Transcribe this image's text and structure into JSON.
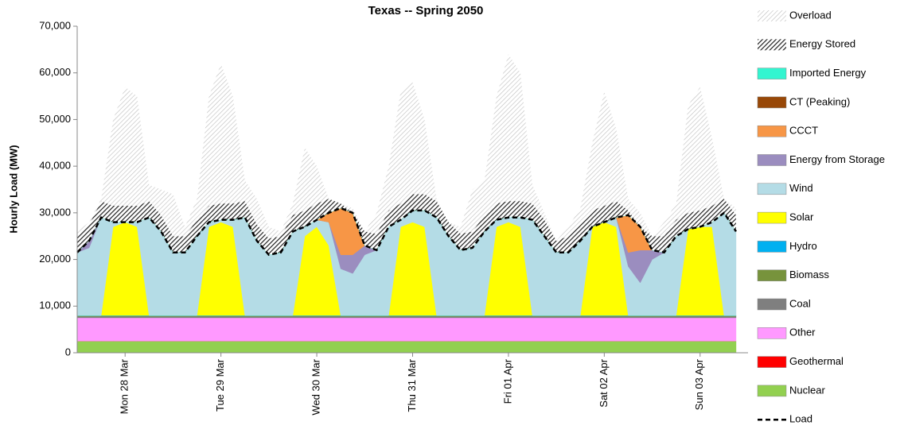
{
  "chart_data": {
    "type": "area",
    "title": "Texas -- Spring 2050",
    "y_label": "Hourly Load (MW)",
    "categories": [
      null,
      null,
      null,
      null,
      "Mon 28 Mar",
      null,
      null,
      null,
      null,
      null,
      null,
      null,
      "Tue 29 Mar",
      null,
      null,
      null,
      null,
      null,
      null,
      null,
      "Wed 30 Mar",
      null,
      null,
      null,
      null,
      null,
      null,
      null,
      "Thu 31 Mar",
      null,
      null,
      null,
      null,
      null,
      null,
      null,
      "Fri 01 Apr",
      null,
      null,
      null,
      null,
      null,
      null,
      null,
      "Sat 02 Apr",
      null,
      null,
      null,
      null,
      null,
      null,
      null,
      "Sun 03 Apr",
      null,
      null,
      null
    ],
    "ylim": [
      0,
      70000
    ],
    "yticks": [
      0,
      {
        "value": 10000,
        "label": "10,000"
      },
      {
        "value": 20000,
        "label": "20,000"
      },
      {
        "value": 30000,
        "label": "30,000"
      },
      {
        "value": 40000,
        "label": "40,000"
      },
      {
        "value": 50000,
        "label": "50,000"
      },
      {
        "value": 60000,
        "label": "60,000"
      },
      {
        "value": 70000,
        "label": "70,000"
      }
    ],
    "grid": false,
    "legend": "right",
    "series": [
      {
        "name": "Overload",
        "color": "#bdbdbd",
        "hatch": true,
        "values": [
          1000,
          500,
          500,
          18500,
          25500,
          23500,
          3500,
          5500,
          9000,
          2000,
          4500,
          23500,
          30000,
          23000,
          4500,
          5500,
          2500,
          1000,
          2500,
          13500,
          8000,
          0,
          0,
          1000,
          0,
          4500,
          9500,
          24000,
          24000,
          16000,
          500,
          0,
          1500,
          9000,
          7500,
          23000,
          31500,
          27500,
          4000,
          1500,
          0,
          2000,
          3500,
          14500,
          24500,
          15500,
          2500,
          3000,
          0,
          3000,
          3500,
          23000,
          26500,
          14500,
          0,
          1500
        ]
      },
      {
        "name": "Energy Stored",
        "color": "#202020",
        "hatch": true,
        "values": [
          3500,
          3500,
          3500,
          3500,
          3500,
          3500,
          3500,
          3500,
          3500,
          3500,
          3500,
          3500,
          3500,
          3500,
          3500,
          3500,
          3500,
          3500,
          3500,
          3500,
          3500,
          3000,
          1000,
          0,
          3000,
          3500,
          3500,
          3500,
          3500,
          3500,
          3500,
          3000,
          3500,
          3500,
          3500,
          3500,
          3500,
          3500,
          3500,
          3500,
          2500,
          3500,
          3500,
          3500,
          3500,
          3500,
          1000,
          0,
          3000,
          3500,
          3500,
          3500,
          3500,
          3500,
          3000,
          3500
        ]
      },
      {
        "name": "Imported Energy",
        "color": "#33f5d0",
        "values": [
          0,
          0,
          0,
          0,
          0,
          0,
          0,
          0,
          0,
          0,
          0,
          0,
          0,
          0,
          0,
          0,
          0,
          0,
          0,
          0,
          0,
          0,
          0,
          0,
          0,
          0,
          0,
          0,
          0,
          0,
          0,
          0,
          0,
          0,
          0,
          0,
          0,
          0,
          0,
          0,
          0,
          0,
          0,
          0,
          0,
          0,
          0,
          0,
          0,
          0,
          0,
          0,
          0,
          0,
          0,
          0
        ]
      },
      {
        "name": "CT (Peaking)",
        "color": "#984807",
        "values": [
          0,
          0,
          0,
          0,
          0,
          0,
          0,
          0,
          0,
          0,
          0,
          0,
          0,
          0,
          0,
          0,
          0,
          0,
          0,
          0,
          0,
          0,
          0,
          0,
          0,
          0,
          0,
          0,
          0,
          0,
          0,
          0,
          0,
          0,
          0,
          0,
          0,
          0,
          0,
          0,
          0,
          0,
          0,
          0,
          0,
          0,
          0,
          0,
          0,
          0,
          0,
          0,
          0,
          0,
          0,
          0
        ]
      },
      {
        "name": "CCCT",
        "color": "#f79646",
        "values": [
          0,
          0,
          0,
          0,
          0,
          0,
          0,
          0,
          0,
          0,
          0,
          0,
          0,
          0,
          0,
          0,
          0,
          0,
          0,
          0,
          0,
          2000,
          10000,
          9000,
          0,
          0,
          0,
          0,
          0,
          0,
          0,
          0,
          0,
          0,
          0,
          0,
          0,
          0,
          0,
          0,
          0,
          0,
          0,
          0,
          0,
          0,
          8000,
          5000,
          0,
          0,
          0,
          0,
          0,
          0,
          0,
          0
        ]
      },
      {
        "name": "Energy from Storage",
        "color": "#9b8dbf",
        "values": [
          0,
          1500,
          0,
          0,
          0,
          0,
          0,
          0,
          0,
          0,
          0,
          0,
          0,
          0,
          0,
          0,
          0,
          0,
          0,
          0,
          0,
          0,
          3000,
          4000,
          2000,
          0,
          0,
          0,
          0,
          0,
          0,
          0,
          0,
          0,
          0,
          0,
          0,
          0,
          0,
          0,
          0,
          0,
          0,
          0,
          0,
          0,
          3000,
          7000,
          2000,
          0,
          0,
          0,
          0,
          0,
          0,
          0
        ]
      },
      {
        "name": "Wind",
        "color": "#b4dce6",
        "values": [
          13500,
          14500,
          21000,
          1000,
          0,
          1000,
          21000,
          18000,
          13500,
          13500,
          17000,
          1000,
          500,
          1500,
          21000,
          16000,
          13000,
          13500,
          18000,
          2000,
          1500,
          5000,
          10000,
          9000,
          13000,
          14000,
          19000,
          1500,
          2500,
          3500,
          21000,
          17000,
          14000,
          14500,
          18000,
          1500,
          1000,
          2000,
          20500,
          17000,
          13500,
          13500,
          16000,
          0,
          0,
          2000,
          10500,
          7000,
          12000,
          13500,
          17000,
          0,
          0,
          1000,
          22000,
          18000
        ]
      },
      {
        "name": "Solar",
        "color": "#ffff00",
        "values": [
          0,
          0,
          0,
          19000,
          20000,
          19000,
          0,
          0,
          0,
          0,
          0,
          19000,
          20000,
          19000,
          0,
          0,
          0,
          0,
          0,
          17000,
          19000,
          15000,
          0,
          0,
          0,
          0,
          0,
          19000,
          20000,
          19000,
          0,
          0,
          0,
          0,
          0,
          19000,
          20000,
          19000,
          0,
          0,
          0,
          0,
          0,
          19000,
          20000,
          19000,
          0,
          0,
          0,
          0,
          0,
          18500,
          19000,
          19000,
          0,
          0
        ]
      },
      {
        "name": "Hydro",
        "color": "#00b0f0",
        "values": [
          100,
          100,
          100,
          100,
          100,
          100,
          100,
          100,
          100,
          100,
          100,
          100,
          100,
          100,
          100,
          100,
          100,
          100,
          100,
          100,
          100,
          100,
          100,
          100,
          100,
          100,
          100,
          100,
          100,
          100,
          100,
          100,
          100,
          100,
          100,
          100,
          100,
          100,
          100,
          100,
          100,
          100,
          100,
          100,
          100,
          100,
          100,
          100,
          100,
          100,
          100,
          100,
          100,
          100,
          100,
          100
        ]
      },
      {
        "name": "Biomass",
        "color": "#77933c",
        "values": [
          100,
          100,
          100,
          100,
          100,
          100,
          100,
          100,
          100,
          100,
          100,
          100,
          100,
          100,
          100,
          100,
          100,
          100,
          100,
          100,
          100,
          100,
          100,
          100,
          100,
          100,
          100,
          100,
          100,
          100,
          100,
          100,
          100,
          100,
          100,
          100,
          100,
          100,
          100,
          100,
          100,
          100,
          100,
          100,
          100,
          100,
          100,
          100,
          100,
          100,
          100,
          100,
          100,
          100,
          100,
          100
        ]
      },
      {
        "name": "Coal",
        "color": "#7f7f7f",
        "values": [
          300,
          300,
          300,
          300,
          300,
          300,
          300,
          300,
          300,
          300,
          300,
          300,
          300,
          300,
          300,
          300,
          300,
          300,
          300,
          300,
          300,
          300,
          300,
          300,
          300,
          300,
          300,
          300,
          300,
          300,
          300,
          300,
          300,
          300,
          300,
          300,
          300,
          300,
          300,
          300,
          300,
          300,
          300,
          300,
          300,
          300,
          300,
          300,
          300,
          300,
          300,
          300,
          300,
          300,
          300,
          300
        ]
      },
      {
        "name": "Other",
        "color": "#ff99ff",
        "values": [
          5000,
          5000,
          5000,
          5000,
          5000,
          5000,
          5000,
          5000,
          5000,
          5000,
          5000,
          5000,
          5000,
          5000,
          5000,
          5000,
          5000,
          5000,
          5000,
          5000,
          5000,
          5000,
          5000,
          5000,
          5000,
          5000,
          5000,
          5000,
          5000,
          5000,
          5000,
          5000,
          5000,
          5000,
          5000,
          5000,
          5000,
          5000,
          5000,
          5000,
          5000,
          5000,
          5000,
          5000,
          5000,
          5000,
          5000,
          5000,
          5000,
          5000,
          5000,
          5000,
          5000,
          5000,
          5000,
          5000
        ]
      },
      {
        "name": "Geothermal",
        "color": "#ff0000",
        "values": [
          0,
          0,
          0,
          0,
          0,
          0,
          0,
          0,
          0,
          0,
          0,
          0,
          0,
          0,
          0,
          0,
          0,
          0,
          0,
          0,
          0,
          0,
          0,
          0,
          0,
          0,
          0,
          0,
          0,
          0,
          0,
          0,
          0,
          0,
          0,
          0,
          0,
          0,
          0,
          0,
          0,
          0,
          0,
          0,
          0,
          0,
          0,
          0,
          0,
          0,
          0,
          0,
          0,
          0,
          0,
          0
        ]
      },
      {
        "name": "Nuclear",
        "color": "#92d050",
        "values": [
          2500,
          2500,
          2500,
          2500,
          2500,
          2500,
          2500,
          2500,
          2500,
          2500,
          2500,
          2500,
          2500,
          2500,
          2500,
          2500,
          2500,
          2500,
          2500,
          2500,
          2500,
          2500,
          2500,
          2500,
          2500,
          2500,
          2500,
          2500,
          2500,
          2500,
          2500,
          2500,
          2500,
          2500,
          2500,
          2500,
          2500,
          2500,
          2500,
          2500,
          2500,
          2500,
          2500,
          2500,
          2500,
          2500,
          2500,
          2500,
          2500,
          2500,
          2500,
          2500,
          2500,
          2500,
          2500,
          2500
        ]
      },
      {
        "name": "Load",
        "color": "#000000",
        "type": "line",
        "values": [
          21500,
          24000,
          29000,
          28000,
          28000,
          28000,
          29000,
          26000,
          21500,
          21500,
          25000,
          28000,
          28500,
          28500,
          29000,
          24000,
          21000,
          21500,
          26000,
          27000,
          28500,
          30000,
          31000,
          30000,
          23000,
          22000,
          27000,
          28500,
          30500,
          30500,
          29000,
          25000,
          22000,
          22500,
          26000,
          28500,
          29000,
          29000,
          28500,
          25000,
          21500,
          21500,
          24000,
          27000,
          28000,
          29000,
          29500,
          27000,
          22000,
          21500,
          25000,
          26500,
          27000,
          28000,
          30000,
          26000
        ]
      }
    ]
  }
}
